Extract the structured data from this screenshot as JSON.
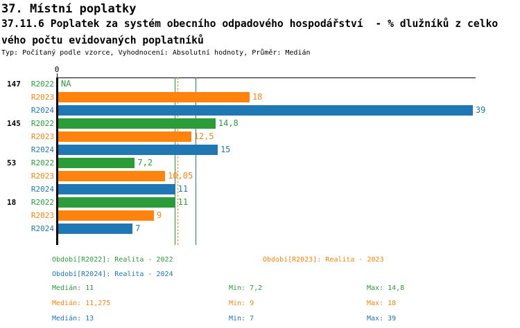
{
  "header": {
    "line1": "37. Místní poplatky",
    "line2": "37.11.6 Poplatek za systém obecního odpadového hospodářství  - % dlužníků z celko",
    "line3": "vého počtu evidovaných poplatníků",
    "meta": "Typ: Počítaný podle vzorce, Vyhodnocení: Absolutní hodnoty, Průměr: Medián"
  },
  "colors": {
    "r2022": "#2a9d38",
    "r2023": "#ff830d",
    "r2024": "#1f77b4",
    "axis": "#000000",
    "background": "#ffffff"
  },
  "chart_data": {
    "type": "bar",
    "orientation": "horizontal",
    "title": "37.11.6 Poplatek za systém obecního odpadového hospodářství - % dlužníků z celkového počtu evidovaných poplatníků",
    "x0_label": "0",
    "axis_range": [
      0,
      39.2
    ],
    "grid": false,
    "categories": [
      "147",
      "145",
      "53",
      "18"
    ],
    "series": [
      {
        "name": "R2022",
        "color_key": "r2022",
        "values": [
          null,
          14.8,
          7.2,
          11
        ],
        "labels": [
          "NA",
          "14,8",
          "7,2",
          "11"
        ],
        "median": 11,
        "line_dash": false
      },
      {
        "name": "R2023",
        "color_key": "r2023",
        "values": [
          18,
          12.5,
          10.05,
          9
        ],
        "labels": [
          "18",
          "12,5",
          "10,05",
          "9"
        ],
        "median": 11.275,
        "line_dash": true
      },
      {
        "name": "R2024",
        "color_key": "r2024",
        "values": [
          39,
          15,
          11,
          7
        ],
        "labels": [
          "39",
          "15",
          "11",
          "7"
        ],
        "median": 13,
        "line_dash": false
      }
    ],
    "legend": [
      {
        "label": "Období[R2022]: Realita - 2022",
        "color_key": "r2022"
      },
      {
        "label": "Období[R2023]: Realita - 2023",
        "color_key": "r2023"
      },
      {
        "label": "Období[R2024]: Realita - 2024",
        "color_key": "r2024"
      }
    ],
    "stats": [
      {
        "median": "Medián: 11",
        "min": "Min: 7,2",
        "max": "Max: 14,8",
        "color_key": "r2022"
      },
      {
        "median": "Medián: 11,275",
        "min": "Min: 9",
        "max": "Max: 18",
        "color_key": "r2023"
      },
      {
        "median": "Medián: 13",
        "min": "Min: 7",
        "max": "Max: 39",
        "color_key": "r2024"
      }
    ]
  }
}
